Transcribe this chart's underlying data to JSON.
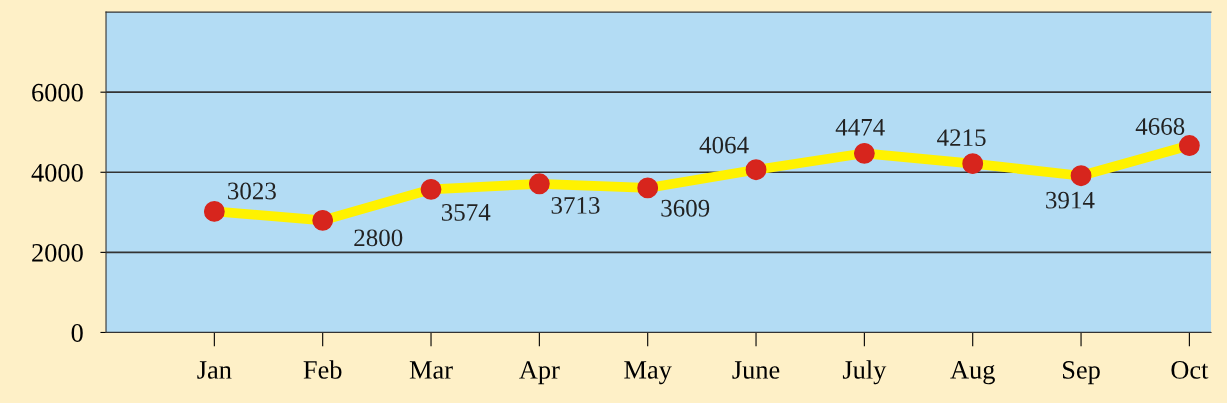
{
  "chart_data": {
    "type": "line",
    "categories": [
      "Jan",
      "Feb",
      "Mar",
      "Apr",
      "May",
      "June",
      "July",
      "Aug",
      "Sep",
      "Oct"
    ],
    "series": [
      {
        "color": "#fff200",
        "values": [
          3023,
          2800,
          3574,
          3713,
          3609,
          4064,
          4474,
          4215,
          3914,
          4668
        ]
      }
    ],
    "marker": "circle",
    "ylim": [
      0,
      8000
    ],
    "yticks": [
      0,
      2000,
      4000,
      6000
    ],
    "grid": "y",
    "data_labels": true
  }
}
